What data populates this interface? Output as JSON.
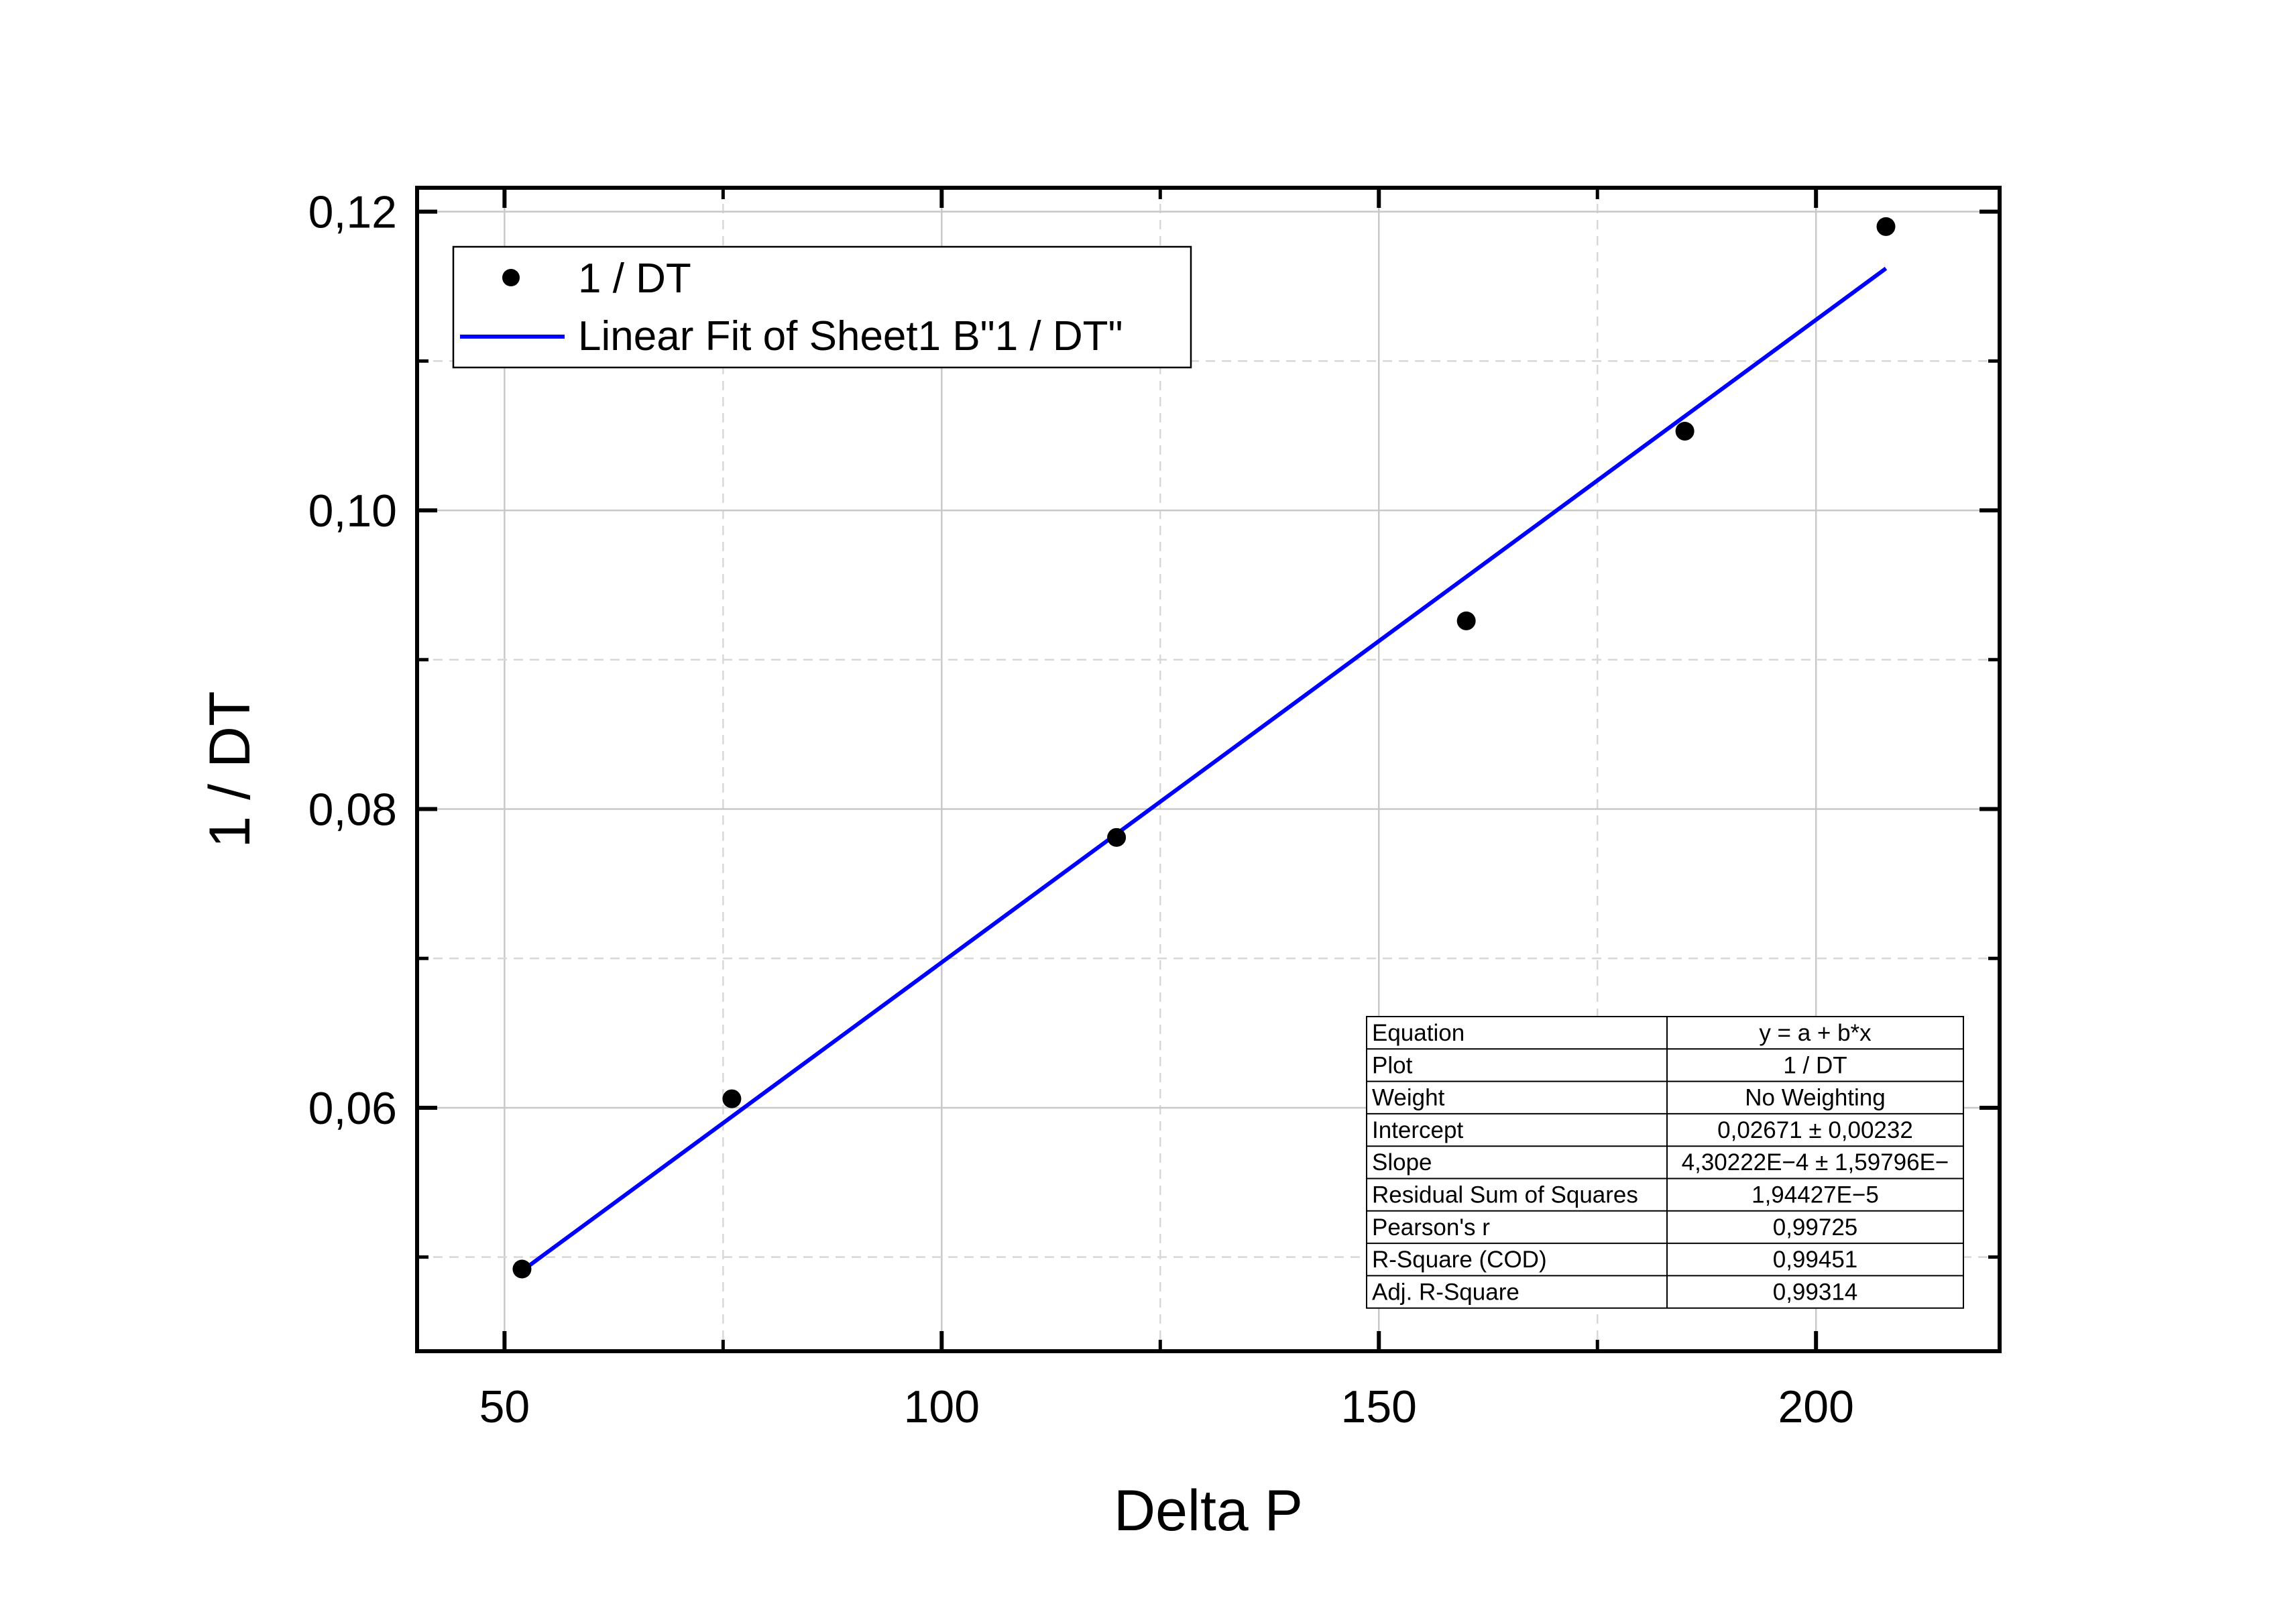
{
  "chart_data": {
    "type": "scatter",
    "xlabel": "Delta P",
    "ylabel": "1 / DT",
    "xlim": [
      40,
      221
    ],
    "ylim": [
      0.0437,
      0.1216
    ],
    "x_ticks": [
      50,
      100,
      150,
      200
    ],
    "x_tick_labels": [
      "50",
      "100",
      "150",
      "200"
    ],
    "x_minor_ticks": [
      75,
      125,
      175
    ],
    "y_ticks": [
      0.06,
      0.08,
      0.1,
      0.12
    ],
    "y_tick_labels": [
      "0,06",
      "0,08",
      "0,10",
      "0,12"
    ],
    "y_minor_ticks": [
      0.05,
      0.07,
      0.09,
      0.11
    ],
    "grid": true,
    "legend_position": "top-left",
    "series": [
      {
        "name": "1 / DT",
        "kind": "scatter",
        "color": "#000000",
        "x": [
          52,
          76,
          120,
          160,
          185,
          208
        ],
        "y": [
          0.0492,
          0.0606,
          0.0781,
          0.0926,
          0.1053,
          0.119
        ]
      },
      {
        "name": "Linear Fit of Sheet1 B\"1 / DT\"",
        "kind": "line",
        "color": "#0000ff",
        "x": [
          52,
          208
        ],
        "y": [
          0.04908,
          0.1162
        ]
      }
    ],
    "fit_table": {
      "rows": [
        [
          "Equation",
          "y = a + b*x"
        ],
        [
          "Plot",
          "1 / DT"
        ],
        [
          "Weight",
          "No Weighting"
        ],
        [
          "Intercept",
          "0,02671 ± 0,00232"
        ],
        [
          "Slope",
          "4,30222E−4 ± 1,59796E−"
        ],
        [
          "Residual Sum of Squares",
          "1,94427E−5"
        ],
        [
          "Pearson's r",
          "0,99725"
        ],
        [
          "R-Square (COD)",
          "0,99451"
        ],
        [
          "Adj. R-Square",
          "0,99314"
        ]
      ]
    }
  }
}
